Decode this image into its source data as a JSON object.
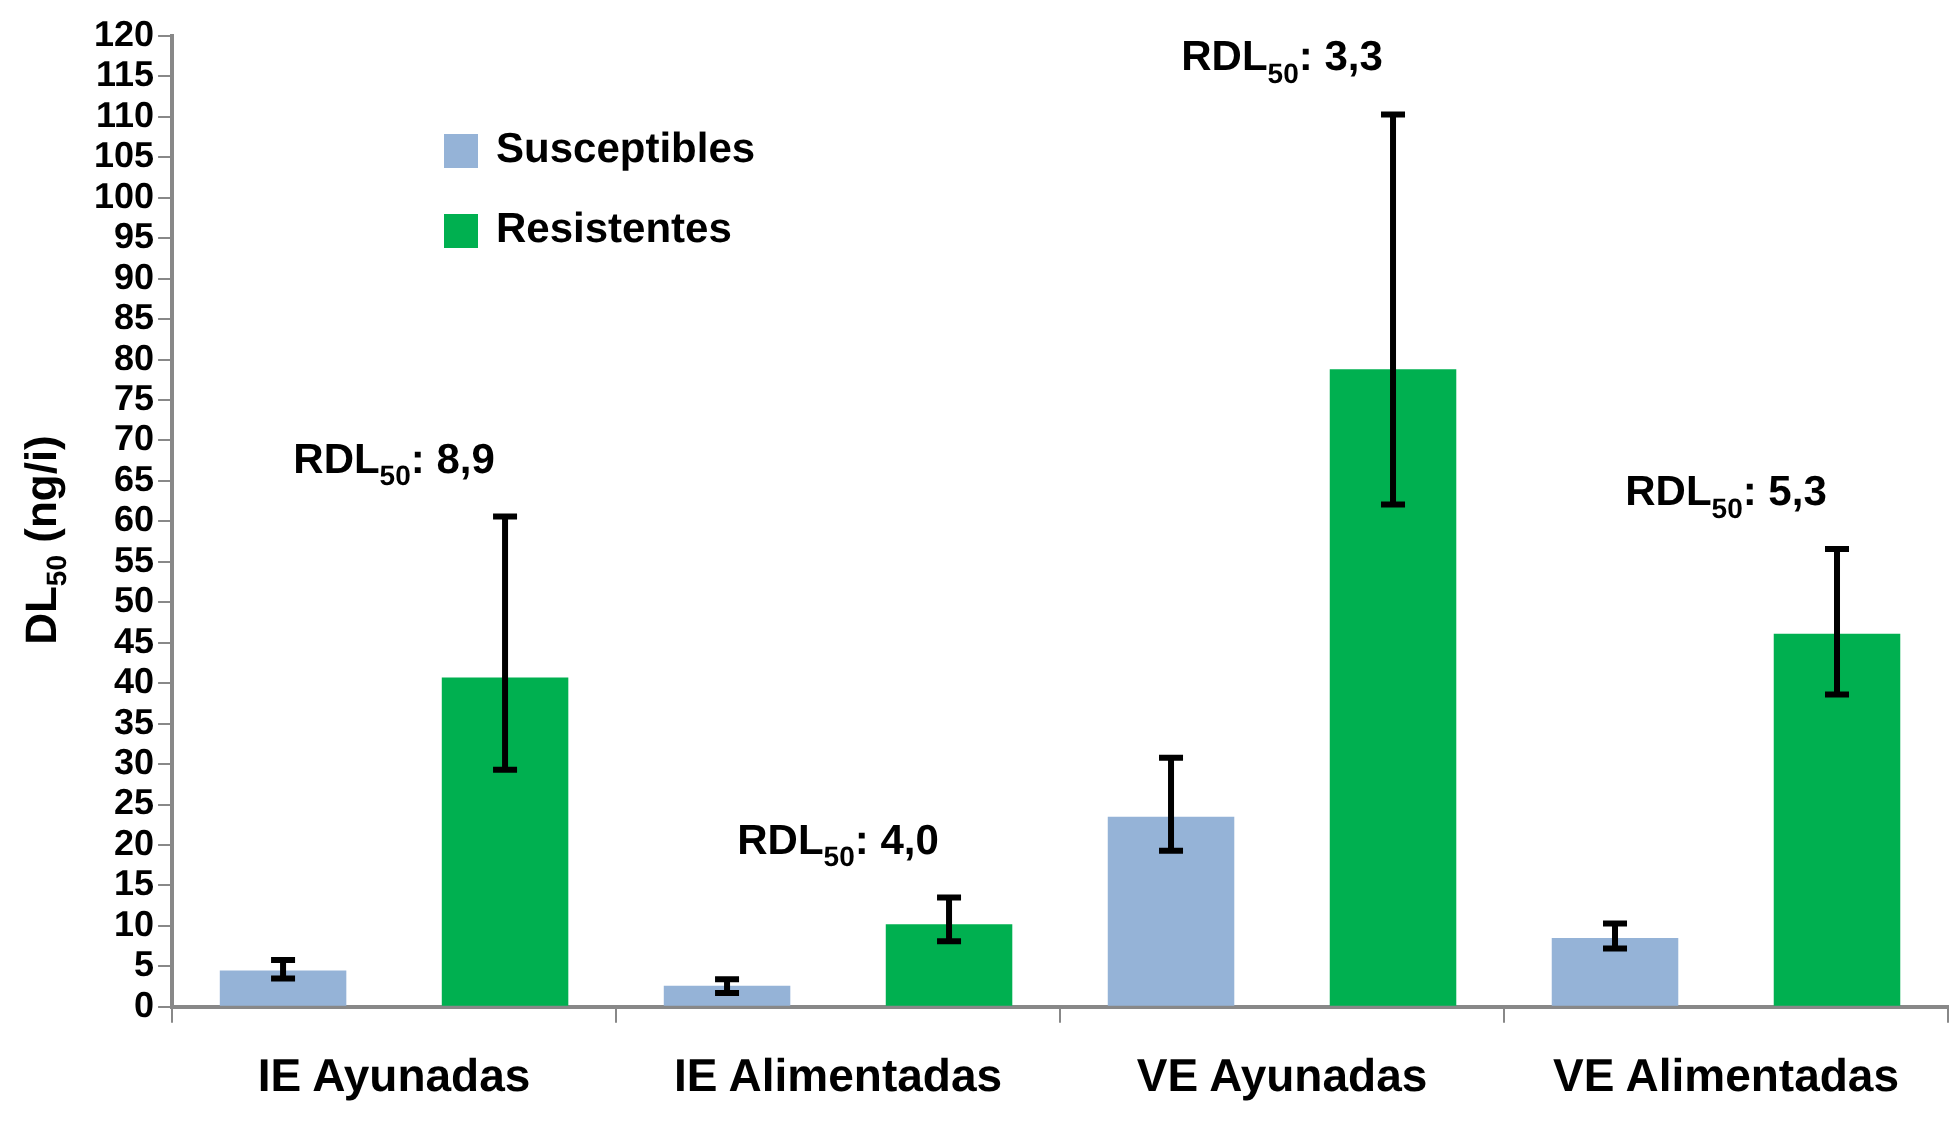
{
  "chart_data": {
    "type": "bar",
    "ylabel": "DL$_{50}$ (ng/i)",
    "categories": [
      "IE Ayunadas",
      "IE Alimentadas",
      "VE Ayunadas",
      "VE Alimentadas"
    ],
    "series": [
      {
        "name": "Susceptibles",
        "color": "#95b3d7",
        "values": [
          4.5,
          2.6,
          23.5,
          8.5
        ],
        "errors": [
          [
            3.5,
            5.8
          ],
          [
            1.7,
            3.4
          ],
          [
            19.3,
            30.8
          ],
          [
            7.2,
            10.3
          ]
        ]
      },
      {
        "name": "Resistentes",
        "color": "#00b050",
        "values": [
          40.7,
          10.2,
          78.8,
          46.1
        ],
        "errors": [
          [
            29.3,
            60.6
          ],
          [
            8.1,
            13.5
          ],
          [
            62.1,
            110.3
          ],
          [
            38.6,
            56.6
          ]
        ]
      }
    ],
    "ylim": [
      0,
      120
    ],
    "yticks": [
      0,
      5,
      10,
      15,
      20,
      25,
      30,
      35,
      40,
      45,
      50,
      55,
      60,
      65,
      70,
      75,
      80,
      85,
      90,
      95,
      100,
      105,
      110,
      115,
      120
    ],
    "grid": false,
    "legend": "top left",
    "annotations": [
      "RDL$_{50}$: 8,9",
      "RDL$_{50}$: 4,0",
      "RDL$_{50}$: 3,3",
      "RDL$_{50}$: 5,3"
    ]
  }
}
